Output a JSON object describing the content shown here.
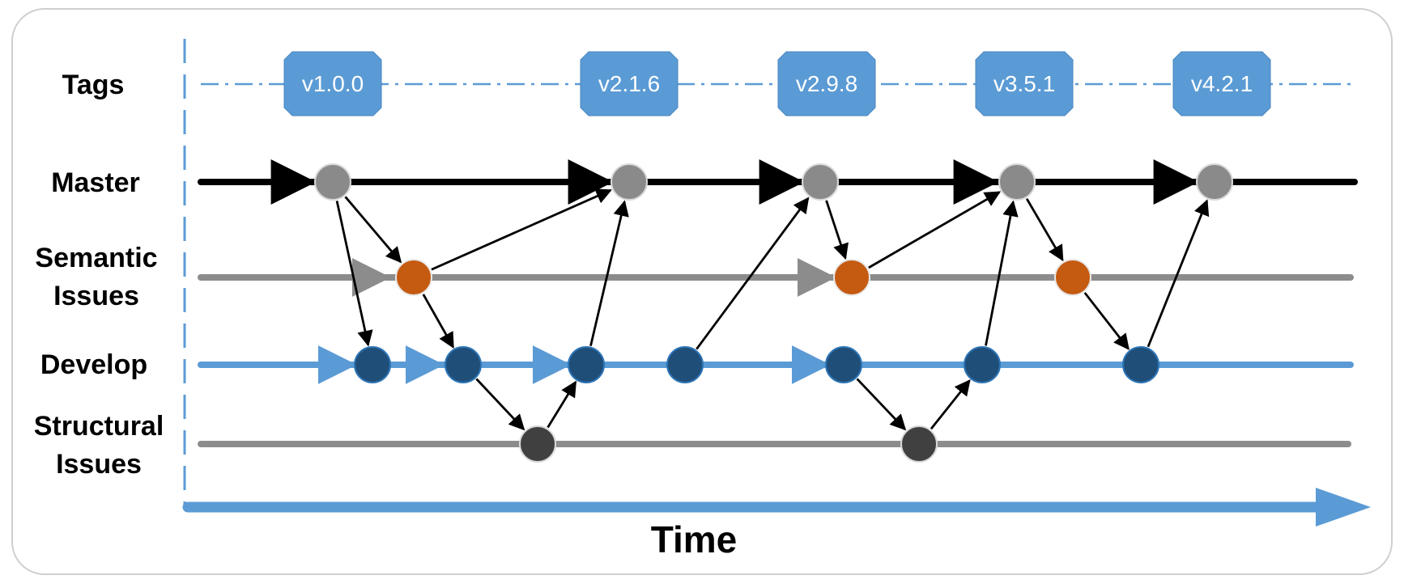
{
  "lanes": {
    "tags": "Tags",
    "master": "Master",
    "semantic": [
      "Semantic",
      "Issues"
    ],
    "develop": "Develop",
    "structural": [
      "Structural",
      "Issues"
    ]
  },
  "tags": [
    "v1.0.0",
    "v2.1.6",
    "v2.9.8",
    "v3.5.1",
    "v4.2.1"
  ],
  "axis_label": "Time",
  "colors": {
    "tag_fill": "#5b9bd5",
    "master_line": "#000000",
    "issue_line": "#8c8c8c",
    "develop_line": "#5b9bd5",
    "master_node": "#8a8a8a",
    "semantic_node": "#c55a11",
    "develop_node": "#1f4e79",
    "structural_node": "#404040"
  },
  "nodes": {
    "master": [
      "m1",
      "m2",
      "m3",
      "m4",
      "m5"
    ],
    "semantic": [
      "s1",
      "s2",
      "s3"
    ],
    "develop": [
      "d1",
      "d2",
      "d3",
      "d4",
      "d5",
      "d6",
      "d7"
    ],
    "structural": [
      "x1",
      "x2"
    ]
  },
  "edges": [
    [
      "m1",
      "s1"
    ],
    [
      "m1",
      "d1"
    ],
    [
      "s1",
      "m2"
    ],
    [
      "s1",
      "d2"
    ],
    [
      "d2",
      "x1"
    ],
    [
      "x1",
      "d3"
    ],
    [
      "d3",
      "m2"
    ],
    [
      "d4",
      "m3"
    ],
    [
      "m3",
      "s2"
    ],
    [
      "s2",
      "m4"
    ],
    [
      "d5",
      "x2"
    ],
    [
      "x2",
      "d6"
    ],
    [
      "d6",
      "m4"
    ],
    [
      "m4",
      "s3"
    ],
    [
      "s3",
      "d7"
    ],
    [
      "d7",
      "m5"
    ]
  ]
}
